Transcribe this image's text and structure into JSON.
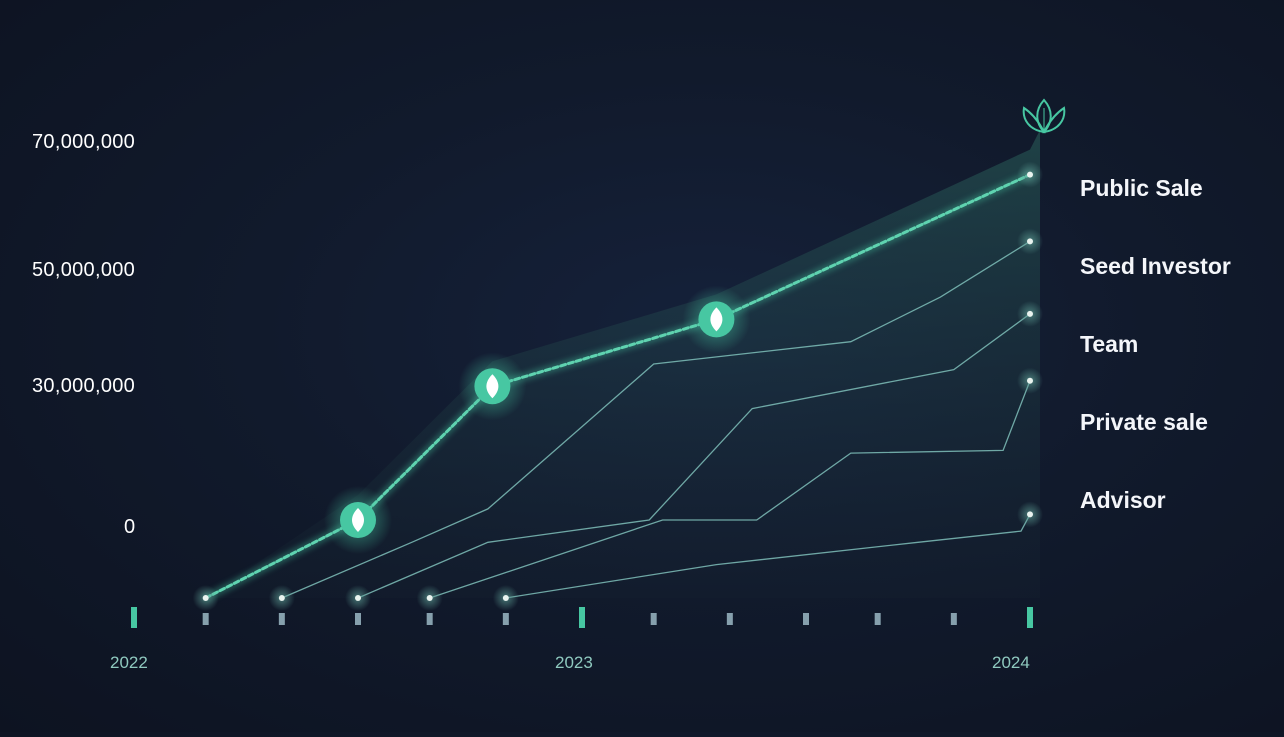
{
  "chart_data": {
    "type": "line",
    "y_tick_labels": [
      "70,000,000",
      "50,000,000",
      "30,000,000",
      "0"
    ],
    "x_tick_labels": [
      "2022",
      "2023",
      "2024"
    ],
    "series": [
      {
        "name": "Public Sale",
        "color": "#47c7a2",
        "points": [
          [
            0.16,
            -14000000
          ],
          [
            0.5,
            0
          ],
          [
            0.8,
            24000000
          ],
          [
            1.3,
            36000000
          ],
          [
            2.0,
            62000000
          ]
        ]
      },
      {
        "name": "Seed Investor",
        "color": "#7fc0ba",
        "points": [
          [
            0.33,
            -14000000
          ],
          [
            0.62,
            -4000000
          ],
          [
            0.79,
            2000000
          ],
          [
            1.16,
            28000000
          ],
          [
            1.6,
            32000000
          ],
          [
            1.8,
            40000000
          ],
          [
            2.0,
            50000000
          ]
        ]
      },
      {
        "name": "Team",
        "color": "#7fc0ba",
        "points": [
          [
            0.5,
            -14000000
          ],
          [
            0.79,
            -4000000
          ],
          [
            1.15,
            0
          ],
          [
            1.38,
            20000000
          ],
          [
            1.83,
            27000000
          ],
          [
            2.0,
            37000000
          ]
        ]
      },
      {
        "name": "Private sale",
        "color": "#7fc0ba",
        "points": [
          [
            0.66,
            -14000000
          ],
          [
            1.18,
            0
          ],
          [
            1.39,
            0
          ],
          [
            1.6,
            12000000
          ],
          [
            1.94,
            12500000
          ],
          [
            2.0,
            25000000
          ]
        ]
      },
      {
        "name": "Advisor",
        "color": "#7fc0ba",
        "points": [
          [
            0.83,
            -14000000
          ],
          [
            1.3,
            -8000000
          ],
          [
            1.75,
            -4000000
          ],
          [
            1.98,
            -2000000
          ],
          [
            2.0,
            1000000
          ]
        ]
      }
    ],
    "highlight_points": [
      [
        0.5,
        0
      ],
      [
        0.8,
        24000000
      ],
      [
        1.3,
        36000000
      ]
    ],
    "y_range": [
      -14000000,
      70000000
    ],
    "x_range": [
      0,
      2
    ],
    "grid": false,
    "legend": "right",
    "minor_ticks_x": [
      0.16,
      0.33,
      0.5,
      0.66,
      0.83,
      1.16,
      1.33,
      1.5,
      1.66,
      1.83
    ]
  },
  "icons": {
    "logo": "lotus-icon",
    "highlight_marker": "leaf-icon"
  },
  "colors": {
    "accent": "#47c7a2",
    "line": "#7fc0ba",
    "background": "#111a2c"
  }
}
